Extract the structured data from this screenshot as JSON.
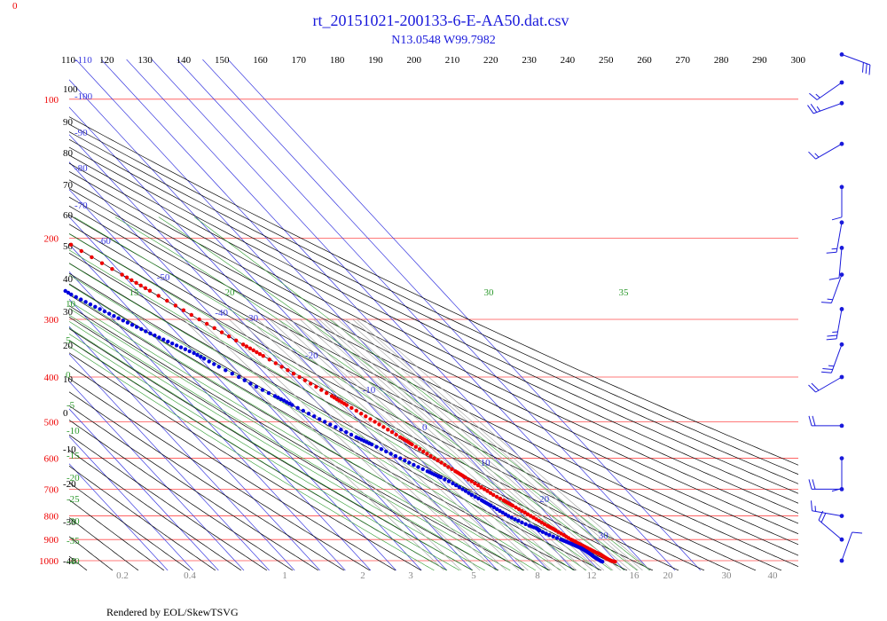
{
  "chart_data": {
    "type": "scatter",
    "subtype": "skew-t log-p sounding",
    "title": "rt_20151021-200133-6-E-AA50.dat.csv",
    "subtitle": "N13.0548 W99.7982",
    "footer": "Rendered by EOL/SkewTSVG",
    "corner_label": "0",
    "colors": {
      "title": "#1a1adb",
      "isobar": "#ff4d4d",
      "dry_adiabat": "#000000",
      "isotherm": "#3a3ae0",
      "moist_adiabat": "#2e9a2e",
      "mixing_ratio": "#a0a0a0",
      "temperature": "#ee0000",
      "dewpoint": "#0000dd",
      "wind": "#1a1adb"
    },
    "pressure_levels": [
      "100",
      "200",
      "300",
      "400",
      "500",
      "600",
      "700",
      "800",
      "900",
      "1000"
    ],
    "potential_temperature_labels": [
      "110",
      "120",
      "130",
      "140",
      "150",
      "160",
      "170",
      "180",
      "190",
      "200",
      "210",
      "220",
      "230",
      "240",
      "250",
      "260",
      "270",
      "280",
      "290",
      "300"
    ],
    "left_potential_temperature_labels": [
      "100",
      "90",
      "80",
      "70",
      "60",
      "50",
      "40",
      "30",
      "20",
      "10",
      "0",
      "-10",
      "-20",
      "-30",
      "-40"
    ],
    "isotherm_labels": [
      "-110",
      "-100",
      "-90",
      "-80",
      "-70",
      "-60",
      "-50",
      "-40",
      "-30",
      "-20",
      "-10",
      "0",
      "10",
      "20",
      "30"
    ],
    "moist_adiabat_labels": [
      "15",
      "20",
      "30",
      "35",
      "10",
      "5",
      "0",
      "-5",
      "-10",
      "-15",
      "-20",
      "-25",
      "-30",
      "-35",
      "-40"
    ],
    "mixing_ratio_labels": [
      "0.2",
      "0.4",
      "1",
      "2",
      "3",
      "5",
      "8",
      "12",
      "16",
      "20",
      "30",
      "40"
    ],
    "temperature_series": {
      "name": "",
      "points": [
        [
          1005,
          29.5
        ],
        [
          1000,
          28.2
        ],
        [
          990,
          27.4
        ],
        [
          980,
          26.9
        ],
        [
          970,
          26.4
        ],
        [
          960,
          25.4
        ],
        [
          950,
          24.5
        ],
        [
          940,
          23.6
        ],
        [
          930,
          22.8
        ],
        [
          920,
          21.9
        ],
        [
          910,
          21.1
        ],
        [
          900,
          20.2
        ],
        [
          880,
          19.0
        ],
        [
          860,
          17.5
        ],
        [
          850,
          16.8
        ],
        [
          840,
          15.9
        ],
        [
          820,
          14.4
        ],
        [
          800,
          12.9
        ],
        [
          780,
          11.3
        ],
        [
          760,
          9.6
        ],
        [
          750,
          8.7
        ],
        [
          740,
          7.9
        ],
        [
          720,
          5.9
        ],
        [
          700,
          4.4
        ],
        [
          680,
          2.8
        ],
        [
          660,
          1.2
        ],
        [
          650,
          0.4
        ],
        [
          640,
          -0.5
        ],
        [
          620,
          -2.3
        ],
        [
          600,
          -4.1
        ],
        [
          580,
          -5.9
        ],
        [
          560,
          -7.8
        ],
        [
          550,
          -8.7
        ],
        [
          540,
          -9.8
        ],
        [
          520,
          -11.9
        ],
        [
          500,
          -14.2
        ],
        [
          480,
          -16.6
        ],
        [
          460,
          -19.2
        ],
        [
          450,
          -20.5
        ],
        [
          440,
          -21.8
        ],
        [
          420,
          -24.6
        ],
        [
          400,
          -27.6
        ],
        [
          380,
          -30.8
        ],
        [
          360,
          -34.2
        ],
        [
          350,
          -36.0
        ],
        [
          340,
          -37.9
        ],
        [
          320,
          -41.9
        ],
        [
          300,
          -46.1
        ],
        [
          280,
          -50.4
        ],
        [
          260,
          -55.1
        ],
        [
          250,
          -57.6
        ],
        [
          240,
          -60.2
        ],
        [
          220,
          -65.8
        ],
        [
          200,
          -71.2
        ],
        [
          190,
          -73.3
        ],
        [
          180,
          -75.1
        ],
        [
          170,
          -77.0
        ],
        [
          160,
          -78.8
        ],
        [
          150,
          -80.5
        ],
        [
          140,
          -82.1
        ],
        [
          130,
          -83.5
        ],
        [
          120,
          -84.5
        ],
        [
          115,
          -84.2
        ],
        [
          110,
          -83.0
        ],
        [
          106,
          -81.4
        ],
        [
          102,
          -79.4
        ],
        [
          98,
          -77.5
        ],
        [
          94,
          -73.5
        ],
        [
          90,
          -71.4
        ],
        [
          87,
          -70.0
        ],
        [
          84,
          -68.8
        ],
        [
          81,
          -68.2
        ],
        [
          79,
          -67.0
        ],
        [
          77,
          -65.1
        ]
      ]
    },
    "dewpoint_series": {
      "name": "",
      "points": [
        [
          1005,
          24.5
        ],
        [
          1000,
          24.0
        ],
        [
          990,
          23.4
        ],
        [
          980,
          22.9
        ],
        [
          970,
          22.6
        ],
        [
          960,
          22.2
        ],
        [
          950,
          21.7
        ],
        [
          940,
          21.1
        ],
        [
          930,
          19.9
        ],
        [
          920,
          18.8
        ],
        [
          910,
          17.6
        ],
        [
          900,
          16.2
        ],
        [
          880,
          13.3
        ],
        [
          860,
          11.1
        ],
        [
          850,
          10.6
        ],
        [
          840,
          8.8
        ],
        [
          820,
          6.2
        ],
        [
          800,
          4.1
        ],
        [
          780,
          2.6
        ],
        [
          760,
          1.0
        ],
        [
          750,
          0.1
        ],
        [
          740,
          -0.7
        ],
        [
          720,
          -2.6
        ],
        [
          700,
          -4.2
        ],
        [
          680,
          -5.9
        ],
        [
          660,
          -8.5
        ],
        [
          650,
          -10.0
        ],
        [
          640,
          -11.5
        ],
        [
          620,
          -14.6
        ],
        [
          600,
          -17.5
        ],
        [
          580,
          -20.6
        ],
        [
          560,
          -23.7
        ],
        [
          550,
          -25.4
        ],
        [
          540,
          -27.1
        ],
        [
          520,
          -30.4
        ],
        [
          500,
          -33.9
        ],
        [
          480,
          -37.3
        ],
        [
          460,
          -40.7
        ],
        [
          450,
          -42.3
        ],
        [
          440,
          -44.2
        ],
        [
          420,
          -48.2
        ],
        [
          400,
          -51.5
        ],
        [
          380,
          -55.6
        ],
        [
          365,
          -58.5
        ],
        [
          355,
          -60.5
        ],
        [
          345,
          -63.5
        ],
        [
          335,
          -66.5
        ],
        [
          325,
          -69.5
        ],
        [
          315,
          -72.5
        ],
        [
          305,
          -75.5
        ],
        [
          295,
          -78.5
        ],
        [
          285,
          -81.5
        ],
        [
          275,
          -84.5
        ],
        [
          265,
          -87.5
        ],
        [
          258,
          -89.0
        ],
        [
          250,
          -90.5
        ]
      ]
    },
    "wind_barbs": [
      {
        "pressure": 80,
        "speed_kt": 30,
        "direction_deg": 110
      },
      {
        "pressure": 92,
        "speed_kt": 15,
        "direction_deg": 235
      },
      {
        "pressure": 102,
        "speed_kt": 25,
        "direction_deg": 250
      },
      {
        "pressure": 125,
        "speed_kt": 15,
        "direction_deg": 240
      },
      {
        "pressure": 155,
        "speed_kt": 10,
        "direction_deg": 180
      },
      {
        "pressure": 185,
        "speed_kt": 15,
        "direction_deg": 190
      },
      {
        "pressure": 210,
        "speed_kt": 10,
        "direction_deg": 185
      },
      {
        "pressure": 240,
        "speed_kt": 15,
        "direction_deg": 200
      },
      {
        "pressure": 285,
        "speed_kt": 25,
        "direction_deg": 190
      },
      {
        "pressure": 340,
        "speed_kt": 25,
        "direction_deg": 200
      },
      {
        "pressure": 400,
        "speed_kt": 20,
        "direction_deg": 240
      },
      {
        "pressure": 510,
        "speed_kt": 20,
        "direction_deg": 270
      },
      {
        "pressure": 600,
        "speed_kt": 10,
        "direction_deg": 180
      },
      {
        "pressure": 700,
        "speed_kt": 20,
        "direction_deg": 270
      },
      {
        "pressure": 800,
        "speed_kt": 15,
        "direction_deg": 280
      },
      {
        "pressure": 900,
        "speed_kt": 20,
        "direction_deg": 310
      },
      {
        "pressure": 1000,
        "speed_kt": 10,
        "direction_deg": 20
      }
    ]
  }
}
